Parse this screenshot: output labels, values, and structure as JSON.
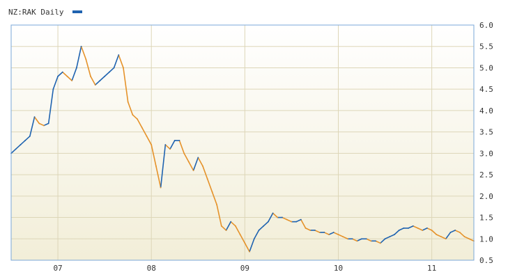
{
  "chart_data": {
    "type": "line",
    "title": "",
    "xlabel": "",
    "ylabel": "",
    "legend": {
      "label": "NZ:RAK Daily",
      "placement": "top-left"
    },
    "grid": true,
    "x_unit": "year",
    "xlim": [
      2006.5,
      2011.45
    ],
    "ylim": [
      0.5,
      6.0
    ],
    "y_ticks": [
      0.5,
      1.0,
      1.5,
      2.0,
      2.5,
      3.0,
      3.5,
      4.0,
      4.5,
      5.0,
      5.5,
      6.0
    ],
    "y_tick_labels": [
      "0.5",
      "1.0",
      "1.5",
      "2.0",
      "2.5",
      "3.0",
      "3.5",
      "4.0",
      "4.5",
      "5.0",
      "5.5",
      "6.0"
    ],
    "x_ticks": [
      2007.0,
      2008.0,
      2009.0,
      2010.0,
      2011.0
    ],
    "x_tick_labels": [
      "07",
      "08",
      "09",
      "10",
      "11"
    ],
    "colors": {
      "up": "#1f63b0",
      "down": "#e5922a",
      "plot_frame": "#7aa7d8",
      "grid": "#ddd6b8",
      "bg_top": "#ffffff",
      "bg_bottom": "#f2eed8"
    },
    "series": [
      {
        "values": [
          [
            2006.5,
            3.0
          ],
          [
            2006.55,
            3.1
          ],
          [
            2006.6,
            3.2
          ],
          [
            2006.65,
            3.3
          ],
          [
            2006.7,
            3.4
          ],
          [
            2006.75,
            3.85
          ],
          [
            2006.8,
            3.7
          ],
          [
            2006.85,
            3.65
          ],
          [
            2006.9,
            3.7
          ],
          [
            2006.95,
            4.5
          ],
          [
            2007.0,
            4.8
          ],
          [
            2007.05,
            4.9
          ],
          [
            2007.1,
            4.8
          ],
          [
            2007.15,
            4.7
          ],
          [
            2007.2,
            5.0
          ],
          [
            2007.25,
            5.5
          ],
          [
            2007.3,
            5.2
          ],
          [
            2007.35,
            4.8
          ],
          [
            2007.4,
            4.6
          ],
          [
            2007.45,
            4.7
          ],
          [
            2007.5,
            4.8
          ],
          [
            2007.55,
            4.9
          ],
          [
            2007.6,
            5.0
          ],
          [
            2007.65,
            5.3
          ],
          [
            2007.7,
            5.0
          ],
          [
            2007.75,
            4.2
          ],
          [
            2007.8,
            3.9
          ],
          [
            2007.85,
            3.8
          ],
          [
            2007.9,
            3.6
          ],
          [
            2007.95,
            3.4
          ],
          [
            2008.0,
            3.2
          ],
          [
            2008.05,
            2.7
          ],
          [
            2008.1,
            2.2
          ],
          [
            2008.15,
            3.2
          ],
          [
            2008.2,
            3.1
          ],
          [
            2008.25,
            3.3
          ],
          [
            2008.3,
            3.3
          ],
          [
            2008.35,
            3.0
          ],
          [
            2008.4,
            2.8
          ],
          [
            2008.45,
            2.6
          ],
          [
            2008.5,
            2.9
          ],
          [
            2008.55,
            2.7
          ],
          [
            2008.6,
            2.4
          ],
          [
            2008.65,
            2.1
          ],
          [
            2008.7,
            1.8
          ],
          [
            2008.75,
            1.3
          ],
          [
            2008.8,
            1.2
          ],
          [
            2008.85,
            1.4
          ],
          [
            2008.9,
            1.3
          ],
          [
            2008.95,
            1.1
          ],
          [
            2009.0,
            0.9
          ],
          [
            2009.05,
            0.7
          ],
          [
            2009.1,
            1.0
          ],
          [
            2009.15,
            1.2
          ],
          [
            2009.2,
            1.3
          ],
          [
            2009.25,
            1.4
          ],
          [
            2009.3,
            1.6
          ],
          [
            2009.35,
            1.5
          ],
          [
            2009.4,
            1.5
          ],
          [
            2009.45,
            1.45
          ],
          [
            2009.5,
            1.4
          ],
          [
            2009.55,
            1.4
          ],
          [
            2009.6,
            1.45
          ],
          [
            2009.65,
            1.25
          ],
          [
            2009.7,
            1.2
          ],
          [
            2009.75,
            1.2
          ],
          [
            2009.8,
            1.15
          ],
          [
            2009.85,
            1.15
          ],
          [
            2009.9,
            1.1
          ],
          [
            2009.95,
            1.15
          ],
          [
            2010.0,
            1.1
          ],
          [
            2010.05,
            1.05
          ],
          [
            2010.1,
            1.0
          ],
          [
            2010.15,
            1.0
          ],
          [
            2010.2,
            0.95
          ],
          [
            2010.25,
            1.0
          ],
          [
            2010.3,
            1.0
          ],
          [
            2010.35,
            0.95
          ],
          [
            2010.4,
            0.95
          ],
          [
            2010.45,
            0.9
          ],
          [
            2010.5,
            1.0
          ],
          [
            2010.55,
            1.05
          ],
          [
            2010.6,
            1.1
          ],
          [
            2010.65,
            1.2
          ],
          [
            2010.7,
            1.25
          ],
          [
            2010.75,
            1.25
          ],
          [
            2010.8,
            1.3
          ],
          [
            2010.85,
            1.25
          ],
          [
            2010.9,
            1.2
          ],
          [
            2010.95,
            1.25
          ],
          [
            2011.0,
            1.2
          ],
          [
            2011.05,
            1.1
          ],
          [
            2011.1,
            1.05
          ],
          [
            2011.15,
            1.0
          ],
          [
            2011.2,
            1.15
          ],
          [
            2011.25,
            1.2
          ],
          [
            2011.3,
            1.15
          ],
          [
            2011.35,
            1.05
          ],
          [
            2011.4,
            1.0
          ],
          [
            2011.45,
            0.95
          ]
        ]
      }
    ]
  }
}
